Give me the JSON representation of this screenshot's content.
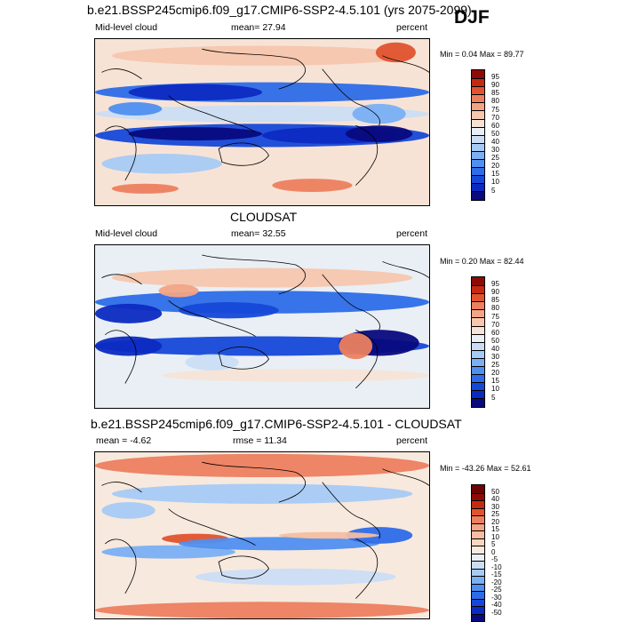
{
  "season": "DJF",
  "panels": [
    {
      "title": "b.e21.BSSP245cmip6.f09_g17.CMIP6-SSP2-4.5.101 (yrs 2075-2099)",
      "left_label": "Mid-level cloud",
      "center_label": "mean=  27.94",
      "units": "percent",
      "minmax": "Min =  0.04 Max =  89.77"
    },
    {
      "title": "CLOUDSAT",
      "left_label": "Mid-level cloud",
      "center_label": "mean=  32.55",
      "units": "percent",
      "minmax": "Min =  0.20 Max =  82.44"
    },
    {
      "title": "b.e21.BSSP245cmip6.f09_g17.CMIP6-SSP2-4.5.101 - CLOUDSAT",
      "left_label": "mean =  -4.62",
      "center_label": "rmse =  11.34",
      "units": "percent",
      "minmax": "Min = -43.26 Max =  52.61"
    }
  ],
  "chart_data": [
    {
      "type": "heatmap",
      "title": "b.e21.BSSP245cmip6.f09_g17.CMIP6-SSP2-4.5.101 (yrs 2075-2099)",
      "variable": "Mid-level cloud",
      "units": "percent",
      "mean": 27.94,
      "min": 0.04,
      "max": 89.77,
      "contour_levels": [
        5,
        10,
        15,
        20,
        25,
        30,
        40,
        50,
        60,
        70,
        75,
        80,
        85,
        90,
        95
      ],
      "colorbar_labels": [
        "95",
        "90",
        "85",
        "80",
        "75",
        "70",
        "60",
        "50",
        "40",
        "30",
        "25",
        "20",
        "15",
        "10",
        "5"
      ],
      "colors": [
        "#080A7E",
        "#0C2AC2",
        "#1648D8",
        "#2D6CE8",
        "#4F8FF0",
        "#7AAFF3",
        "#A6CAF4",
        "#CBDDF4",
        "#E9EFF4",
        "#F7E3D6",
        "#F6C6AE",
        "#F2A485",
        "#EC7F5F",
        "#E0532F",
        "#C52A10",
        "#8E0A05"
      ]
    },
    {
      "type": "heatmap",
      "title": "CLOUDSAT",
      "variable": "Mid-level cloud",
      "units": "percent",
      "mean": 32.55,
      "min": 0.2,
      "max": 82.44,
      "contour_levels": [
        5,
        10,
        15,
        20,
        25,
        30,
        40,
        50,
        60,
        70,
        75,
        80,
        85,
        90,
        95
      ],
      "colorbar_labels": [
        "95",
        "90",
        "85",
        "80",
        "75",
        "70",
        "60",
        "50",
        "40",
        "30",
        "25",
        "20",
        "15",
        "10",
        "5"
      ],
      "colors": [
        "#080A7E",
        "#0C2AC2",
        "#1648D8",
        "#2D6CE8",
        "#4F8FF0",
        "#7AAFF3",
        "#A6CAF4",
        "#CBDDF4",
        "#E9EFF4",
        "#F7E3D6",
        "#F6C6AE",
        "#F2A485",
        "#EC7F5F",
        "#E0532F",
        "#C52A10",
        "#8E0A05"
      ]
    },
    {
      "type": "heatmap",
      "title": "b.e21.BSSP245cmip6.f09_g17.CMIP6-SSP2-4.5.101 - CLOUDSAT",
      "units": "percent",
      "mean": -4.62,
      "rmse": 11.34,
      "min": -43.26,
      "max": 52.61,
      "contour_levels": [
        -50,
        -40,
        -30,
        -25,
        -20,
        -15,
        -10,
        -5,
        0,
        5,
        10,
        15,
        20,
        25,
        30,
        40,
        50
      ],
      "colorbar_labels": [
        "50",
        "40",
        "30",
        "25",
        "20",
        "15",
        "10",
        "5",
        "0",
        "-5",
        "-10",
        "-15",
        "-20",
        "-25",
        "-30",
        "-40",
        "-50"
      ],
      "colors": [
        "#080A7E",
        "#0C2AC2",
        "#1648D8",
        "#2D6CE8",
        "#4F8FF0",
        "#7AAFF3",
        "#A6CAF4",
        "#CBDDF4",
        "#E9EFF4",
        "#F7E9DD",
        "#F7D5C0",
        "#F6BEA0",
        "#F2A485",
        "#EC7F5F",
        "#E0532F",
        "#C52A10",
        "#8E0A05",
        "#6E0303"
      ]
    }
  ]
}
